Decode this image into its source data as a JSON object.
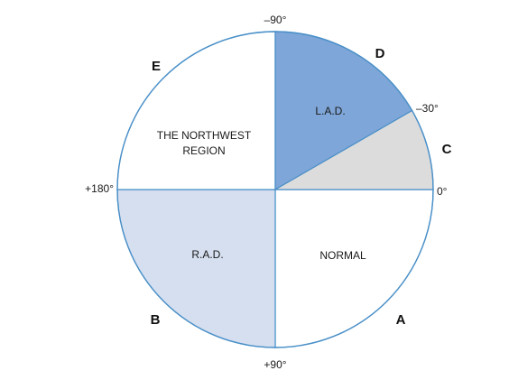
{
  "angles": {
    "top": "–90°",
    "left": "+180°",
    "right": "0°",
    "bottom": "+90°",
    "minus30": "–30°"
  },
  "regions": {
    "lad": "L.A.D.",
    "rad": "R.A.D.",
    "normal": "NORMAL",
    "northwest_line1": "THE NORTHWEST",
    "northwest_line2": "REGION"
  },
  "letters": {
    "a": "A",
    "b": "B",
    "c": "C",
    "d": "D",
    "e": "E"
  },
  "colors": {
    "outline": "#4a90c8",
    "lad_fill": "#7ea6d8",
    "rad_fill": "#d5dff0",
    "c_fill": "#dcdcdc",
    "white_fill": "#ffffff"
  }
}
